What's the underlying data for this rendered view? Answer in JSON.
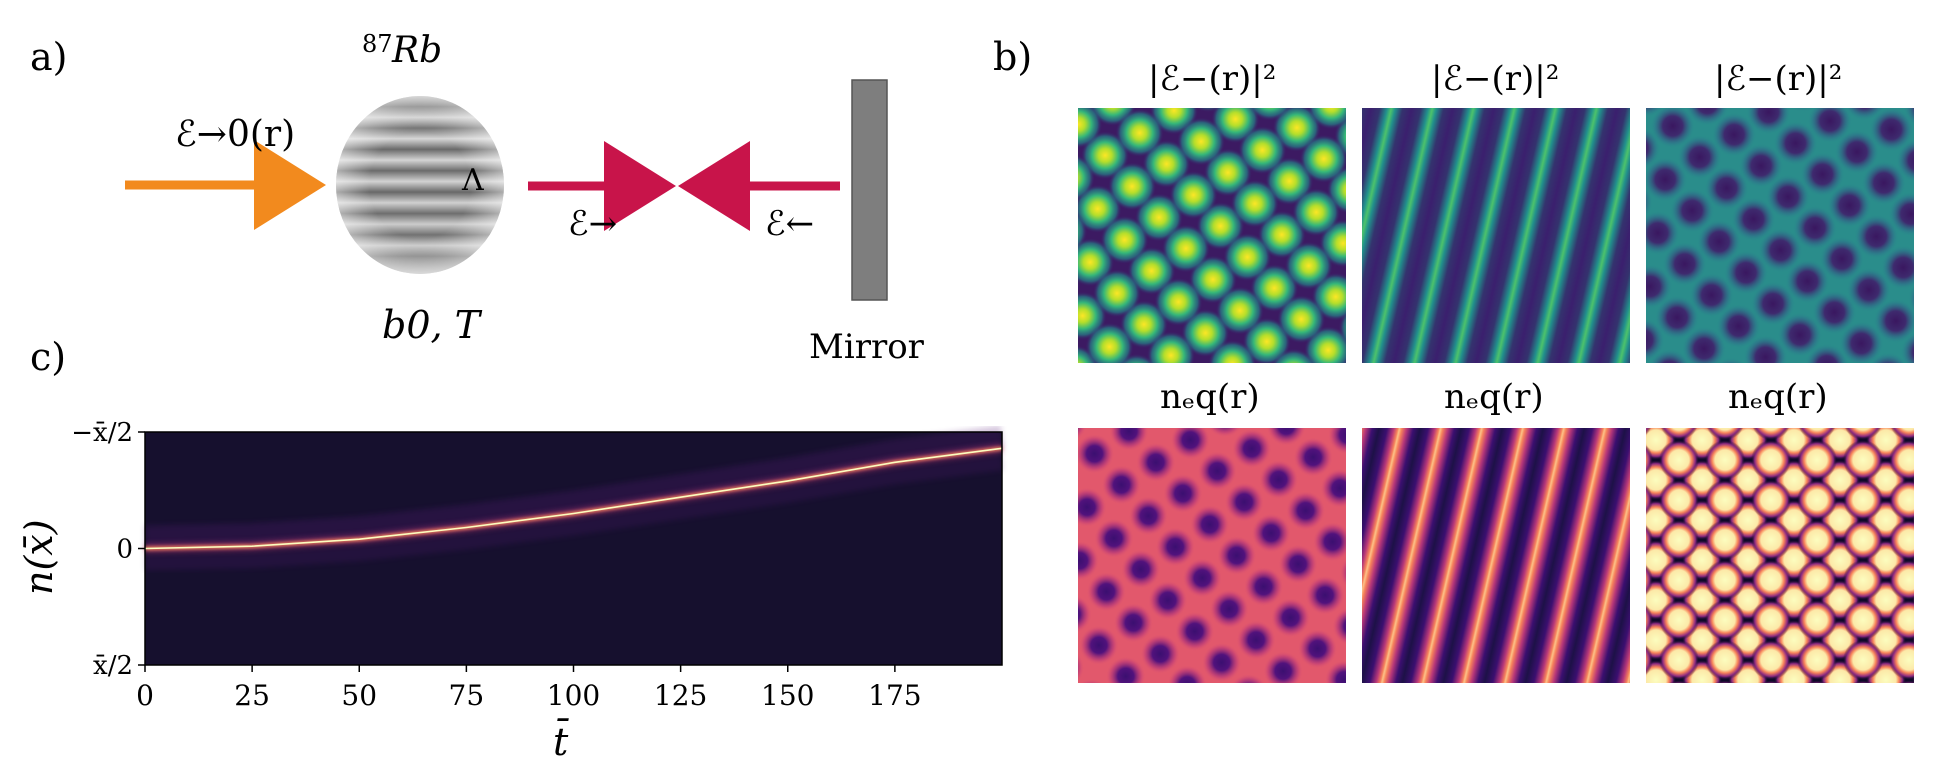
{
  "panel_labels": {
    "a": "a)",
    "b": "b)",
    "c": "c)"
  },
  "schematic": {
    "atom_label": "87Rb",
    "atom_mass": "87",
    "atom_symbol": "Rb",
    "input_field": "ℰ→0(r)",
    "lattice_symbol": "Λ",
    "forward_field": "ℰ→",
    "backward_field": "ℰ←",
    "cloud_params": "b0, T",
    "mirror_label": "Mirror",
    "colors": {
      "input_beam": "#f28a1e",
      "cavity_beam": "#c8144a",
      "mirror": "#808080"
    }
  },
  "grid_panels": {
    "row_titles": [
      "|ℰ−(r)|²",
      "nₑq(r)"
    ],
    "columns": [
      {
        "pattern": "hexagonal-spots",
        "field_colormap": "viridis",
        "density_colormap": "magma"
      },
      {
        "pattern": "stripes",
        "field_colormap": "viridis",
        "density_colormap": "magma"
      },
      {
        "pattern": "honeycomb",
        "field_colormap": "viridis",
        "density_colormap": "magma"
      }
    ]
  },
  "chart_data": {
    "type": "heatmap",
    "xlabel": "t̄",
    "ylabel": "n(x̄)",
    "xlim": [
      0,
      200
    ],
    "ylim": [
      "−x̄/2",
      "x̄/2"
    ],
    "x_ticks": [
      "0",
      "25",
      "50",
      "75",
      "100",
      "125",
      "150",
      "175"
    ],
    "y_ticks": [
      "−x̄/2",
      "0",
      "x̄/2"
    ],
    "colormap": "magma",
    "series": [
      {
        "values": [
          [
            0,
            0
          ],
          [
            25,
            -0.01
          ],
          [
            50,
            -0.04
          ],
          [
            75,
            -0.09
          ],
          [
            100,
            -0.15
          ],
          [
            125,
            -0.22
          ],
          [
            150,
            -0.29
          ],
          [
            175,
            -0.37
          ],
          [
            200,
            -0.43
          ]
        ]
      }
    ]
  }
}
